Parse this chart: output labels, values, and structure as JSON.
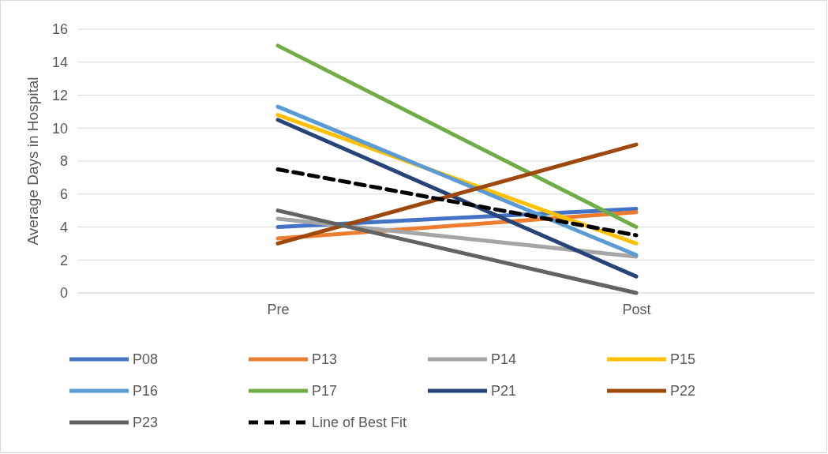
{
  "chart_data": {
    "type": "line",
    "ylabel": "Average Days in Hospital",
    "categories": [
      "Pre",
      "Post"
    ],
    "ylim": [
      0,
      16
    ],
    "yticks": [
      0,
      2,
      4,
      6,
      8,
      10,
      12,
      14,
      16
    ],
    "grid": "y",
    "legend": "bottom",
    "marker": "none",
    "line_style": "solid",
    "series": [
      {
        "name": "P08",
        "color": "#4472c4",
        "values": [
          4.0,
          5.1
        ]
      },
      {
        "name": "P13",
        "color": "#ed7d31",
        "values": [
          3.3,
          4.9
        ]
      },
      {
        "name": "P14",
        "color": "#a5a5a5",
        "values": [
          4.5,
          2.2
        ]
      },
      {
        "name": "P15",
        "color": "#ffc000",
        "values": [
          10.8,
          3.0
        ]
      },
      {
        "name": "P16",
        "color": "#5b9bd5",
        "values": [
          11.3,
          2.3
        ]
      },
      {
        "name": "P17",
        "color": "#70ad47",
        "values": [
          15.0,
          4.0
        ]
      },
      {
        "name": "P21",
        "color": "#264478",
        "values": [
          10.5,
          1.0
        ]
      },
      {
        "name": "P22",
        "color": "#9e480e",
        "values": [
          3.0,
          9.0
        ]
      },
      {
        "name": "P23",
        "color": "#636363",
        "values": [
          5.0,
          0.0
        ]
      },
      {
        "name": "Line of Best Fit",
        "color": "#000000",
        "values": [
          7.5,
          3.5
        ],
        "line_style": "dashed"
      }
    ]
  }
}
